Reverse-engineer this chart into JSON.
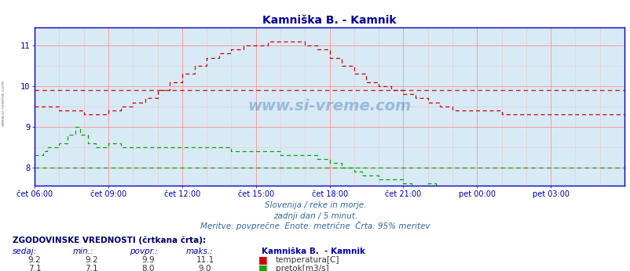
{
  "title": "Kamniška B. - Kamnik",
  "title_color": "#000099",
  "bg_color": "#ffffff",
  "plot_bg_color": "#d8eaf5",
  "fig_bg_color": "#ffffff",
  "grid_color": "#ff8888",
  "avg_color_temp": "#cc0000",
  "avg_color_flow": "#00aa00",
  "temp_color": "#cc0000",
  "flow_color": "#00aa00",
  "axis_color": "#0000bb",
  "tick_label_color": "#0000aa",
  "subtitle1": "Slovenija / reke in morje.",
  "subtitle2": "zadnji dan / 5 minut.",
  "subtitle3": "Meritve: povprečne  Enote: metrične  Črta: 95% meritev",
  "footer_title": "ZGODOVINSKE VREDNOSTI (črtkana črta):",
  "footer_cols": [
    "sedaj:",
    "min.:",
    "povpr.:",
    "maks.:"
  ],
  "footer_station": "Kamniška B.  - Kamnik",
  "footer_temp": [
    9.2,
    9.2,
    9.9,
    11.1
  ],
  "footer_flow": [
    7.1,
    7.1,
    8.0,
    9.0
  ],
  "footer_temp_label": "temperatura[C]",
  "footer_flow_label": "pretok[m3/s]",
  "ylim": [
    7.55,
    11.45
  ],
  "yticks": [
    8,
    9,
    10,
    11
  ],
  "avg_temp": 9.9,
  "avg_flow": 8.0,
  "x_start_h": 6,
  "x_end_h": 30,
  "xtick_hours": [
    6,
    9,
    12,
    15,
    18,
    21,
    24,
    27,
    30
  ],
  "xtick_labels": [
    "čet 06:00",
    "čet 09:00",
    "čet 12:00",
    "čet 15:00",
    "čet 18:00",
    "čet 21:00",
    "pet 00:00",
    "pet 03:00",
    ""
  ],
  "watermark": "www.si-vreme.com",
  "side_text": "www.si-vreme.com"
}
